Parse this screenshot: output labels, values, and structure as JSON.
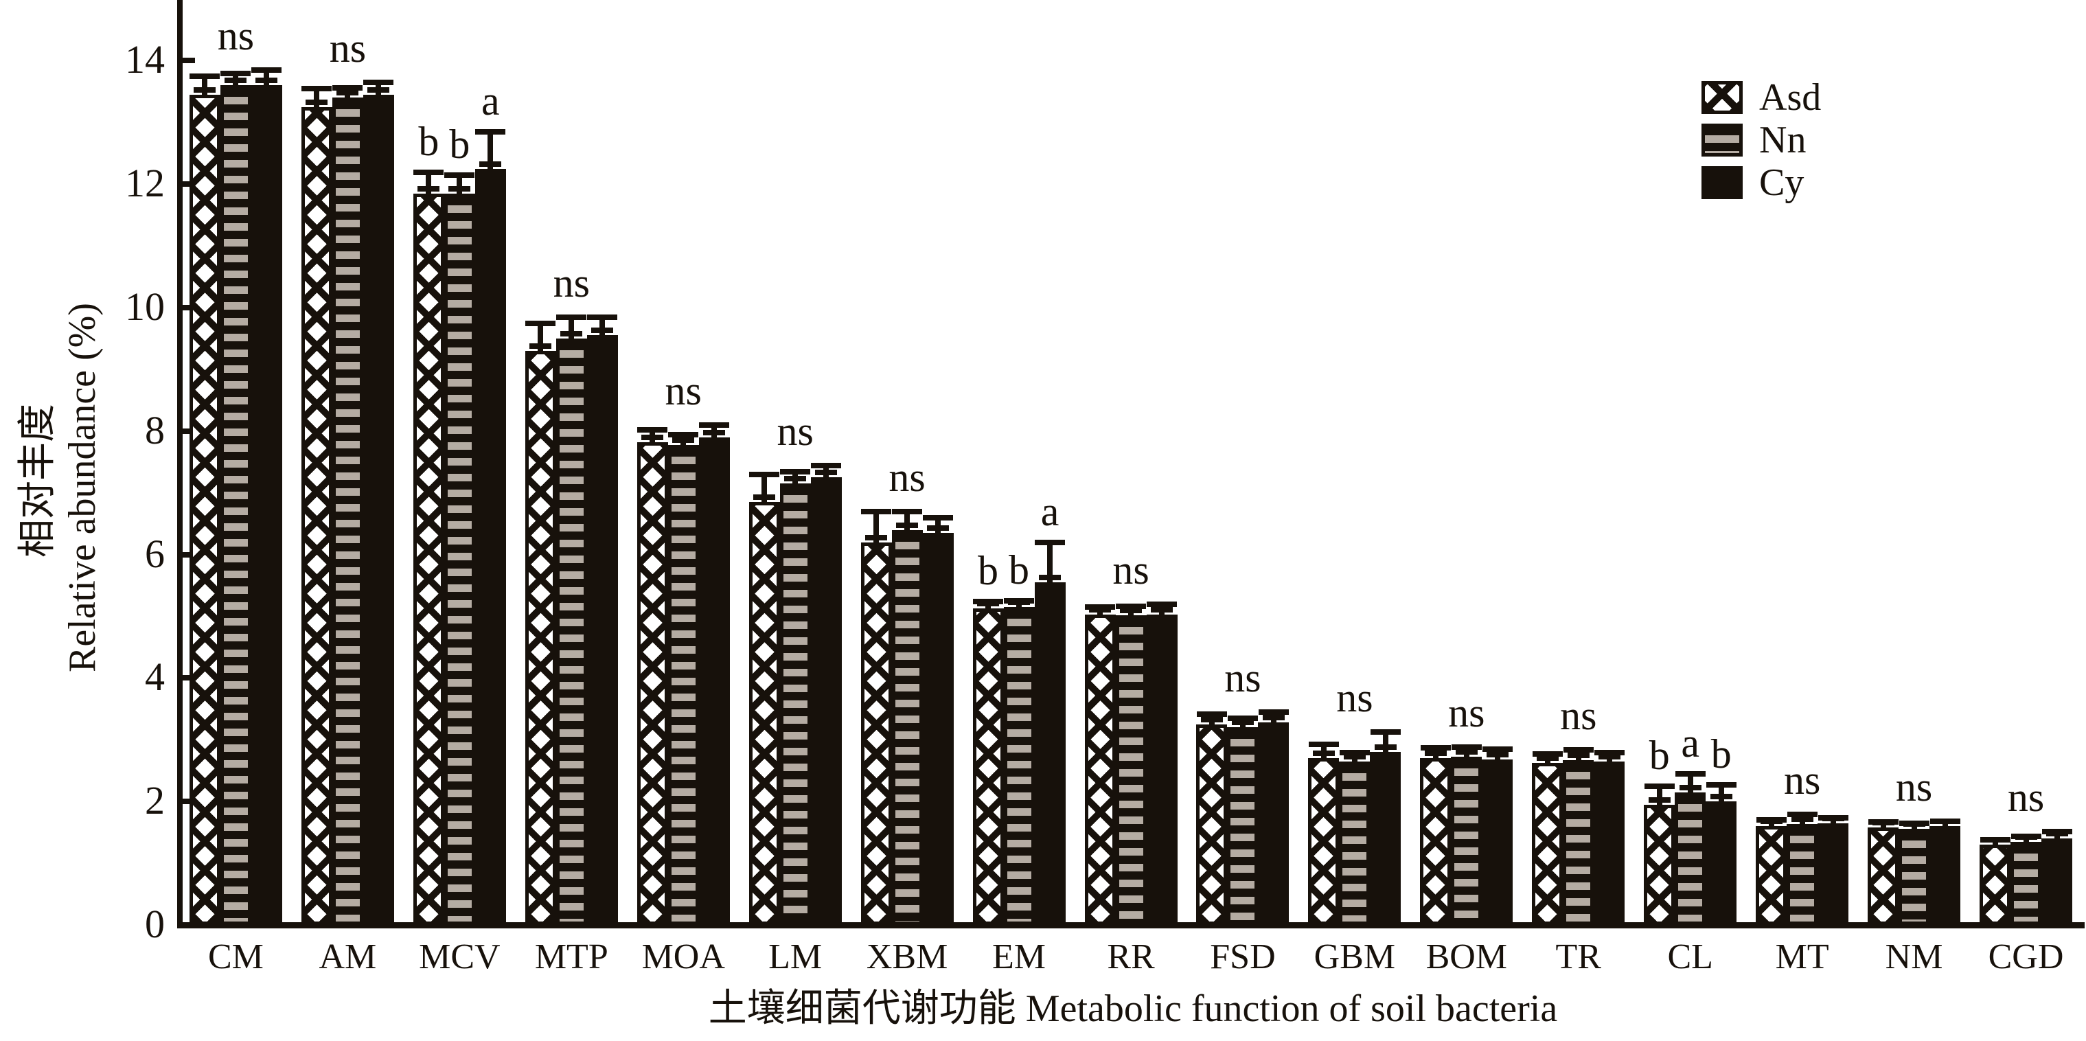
{
  "figure": {
    "background": "#ffffff",
    "ink": "#17110b",
    "stripe_gray": "#b5aca3"
  },
  "chart_data": {
    "type": "bar",
    "title": "",
    "ylabel_cn": "相对丰度",
    "ylabel_en": "Relative abundance (%)",
    "xlabel": "土壤细菌代谢功能  Metabolic function of soil bacteria",
    "yticks": [
      0,
      2,
      4,
      6,
      8,
      10,
      12,
      14
    ],
    "ylim": [
      0,
      15
    ],
    "grid": false,
    "legend_position": "top-right",
    "categories": [
      "CM",
      "AM",
      "MCV",
      "MTP",
      "MOA",
      "LM",
      "XBM",
      "EM",
      "RR",
      "FSD",
      "GBM",
      "BOM",
      "TR",
      "CL",
      "MT",
      "NM",
      "CGD"
    ],
    "series": [
      {
        "name": "Asd",
        "pattern": "crosshatch",
        "values": [
          13.45,
          13.25,
          11.85,
          9.3,
          7.82,
          6.85,
          6.2,
          5.13,
          5.03,
          3.25,
          2.7,
          2.7,
          2.63,
          1.95,
          1.6,
          1.58,
          1.3
        ],
        "errors": [
          0.25,
          0.25,
          0.3,
          0.4,
          0.15,
          0.4,
          0.45,
          0.06,
          0.08,
          0.12,
          0.18,
          0.12,
          0.1,
          0.25,
          0.06,
          0.04,
          0.04
        ]
      },
      {
        "name": "Nn",
        "pattern": "hstripes",
        "values": [
          13.6,
          13.4,
          11.85,
          9.5,
          7.78,
          7.15,
          6.4,
          5.15,
          5.02,
          3.2,
          2.65,
          2.72,
          2.67,
          2.15,
          1.63,
          1.56,
          1.35
        ],
        "errors": [
          0.15,
          0.12,
          0.25,
          0.3,
          0.12,
          0.15,
          0.25,
          0.06,
          0.1,
          0.1,
          0.1,
          0.12,
          0.12,
          0.25,
          0.12,
          0.04,
          0.04
        ]
      },
      {
        "name": "Cy",
        "pattern": "solid",
        "values": [
          13.6,
          13.45,
          12.25,
          9.55,
          7.9,
          7.25,
          6.35,
          5.55,
          5.03,
          3.28,
          2.8,
          2.68,
          2.65,
          2.0,
          1.65,
          1.6,
          1.4
        ],
        "errors": [
          0.2,
          0.15,
          0.55,
          0.25,
          0.15,
          0.15,
          0.2,
          0.6,
          0.12,
          0.12,
          0.28,
          0.12,
          0.1,
          0.22,
          0.04,
          0.04,
          0.07
        ]
      }
    ],
    "significance": [
      {
        "mode": "group",
        "label": "ns"
      },
      {
        "mode": "group",
        "label": "ns"
      },
      {
        "mode": "per_bar",
        "labels": [
          "b",
          "b",
          "a"
        ]
      },
      {
        "mode": "group",
        "label": "ns"
      },
      {
        "mode": "group",
        "label": "ns"
      },
      {
        "mode": "group",
        "label": "ns"
      },
      {
        "mode": "group",
        "label": "ns"
      },
      {
        "mode": "per_bar",
        "labels": [
          "b",
          "b",
          "a"
        ]
      },
      {
        "mode": "group",
        "label": "ns"
      },
      {
        "mode": "group",
        "label": "ns"
      },
      {
        "mode": "group",
        "label": "ns"
      },
      {
        "mode": "group",
        "label": "ns"
      },
      {
        "mode": "group",
        "label": "ns"
      },
      {
        "mode": "per_bar",
        "labels": [
          "b",
          "a",
          "b"
        ]
      },
      {
        "mode": "group",
        "label": "ns"
      },
      {
        "mode": "group",
        "label": "ns"
      },
      {
        "mode": "group",
        "label": "ns"
      }
    ]
  }
}
